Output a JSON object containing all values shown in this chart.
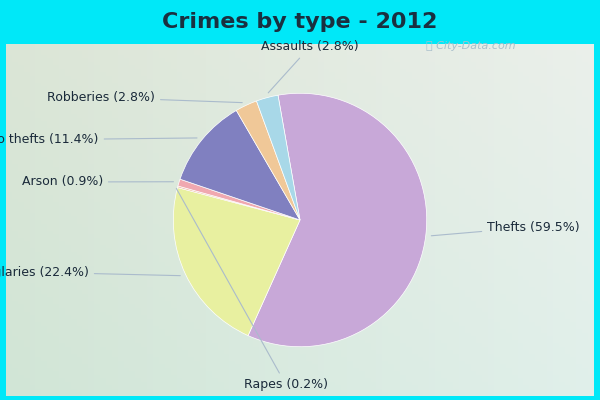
{
  "title": "Crimes by type - 2012",
  "labels": [
    "Thefts",
    "Burglaries",
    "Rapes",
    "Arson",
    "Auto thefts",
    "Robberies",
    "Assaults"
  ],
  "values": [
    59.5,
    22.4,
    0.2,
    0.9,
    11.4,
    2.8,
    2.8
  ],
  "colors": [
    "#c8a8d8",
    "#e8f0a0",
    "#f0b8a0",
    "#f0a8b0",
    "#8080c0",
    "#f0c898",
    "#a8d8e8"
  ],
  "bg_cyan": "#00e8f8",
  "bg_chart": "#d8ede0",
  "title_fontsize": 16,
  "label_fontsize": 9,
  "title_color": "#1a3040",
  "label_color": "#1a2a3a",
  "watermark": "City-Data.com",
  "startangle": 100,
  "label_positions": [
    [
      1.38,
      -0.1,
      "left"
    ],
    [
      -1.45,
      -0.42,
      "right"
    ],
    [
      -0.05,
      -1.22,
      "center"
    ],
    [
      -1.35,
      0.22,
      "right"
    ],
    [
      -1.38,
      0.52,
      "right"
    ],
    [
      -0.98,
      0.82,
      "right"
    ],
    [
      0.12,
      1.18,
      "center"
    ]
  ]
}
